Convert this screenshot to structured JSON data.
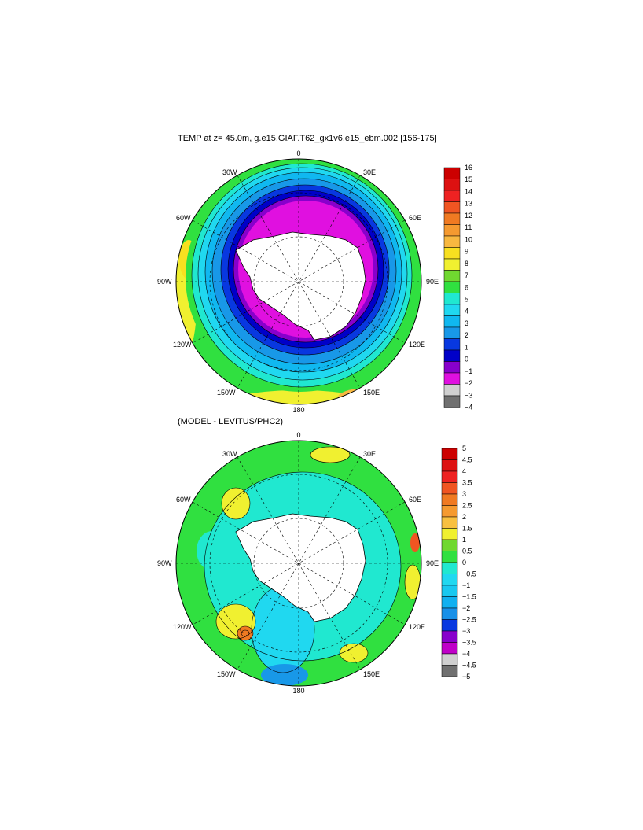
{
  "panels": [
    {
      "title": "TEMP at z=  45.0m, g.e15.GIAF.T62_gx1v6.e15_ebm.002 [156-175]",
      "lon_labels": {
        "top": "0",
        "bottom": "180",
        "left": "90W",
        "right": "90E",
        "nw": "30W",
        "wnw": "60W",
        "wsw": "120W",
        "sw": "150W",
        "ne": "30E",
        "ene": "60E",
        "ese": "120E",
        "se": "150E"
      },
      "colorbar": {
        "labels": [
          "16",
          "15",
          "14",
          "13",
          "12",
          "11",
          "10",
          "9",
          "8",
          "7",
          "6",
          "5",
          "4",
          "3",
          "2",
          "1",
          "0",
          "−1",
          "−2",
          "−3",
          "−4"
        ],
        "colors": [
          "#cc0000",
          "#dd1111",
          "#ee2222",
          "#f05522",
          "#f07a22",
          "#f59a30",
          "#f8b840",
          "#f8e020",
          "#f0f030",
          "#70d830",
          "#30e040",
          "#20e8d0",
          "#20d8f0",
          "#10b8f0",
          "#1898e8",
          "#0838e0",
          "#0000c8",
          "#8800cc",
          "#e010e0",
          "#d0d0d0",
          "#707070"
        ]
      }
    },
    {
      "title": "(MODEL - LEVITUS/PHC2)",
      "lon_labels": {
        "top": "0",
        "bottom": "180",
        "left": "90W",
        "right": "90E",
        "nw": "30W",
        "wnw": "60W",
        "wsw": "120W",
        "sw": "150W",
        "ne": "30E",
        "ene": "60E",
        "ese": "120E",
        "se": "150E"
      },
      "colorbar": {
        "labels": [
          "5",
          "4.5",
          "4",
          "3.5",
          "3",
          "2.5",
          "2",
          "1.5",
          "1",
          "0.5",
          "0",
          "−0.5",
          "−1",
          "−1.5",
          "−2",
          "−2.5",
          "−3",
          "−3.5",
          "−4",
          "−4.5",
          "−5"
        ],
        "colors": [
          "#cc0000",
          "#dd1111",
          "#ee2222",
          "#f05522",
          "#f07a22",
          "#f59a30",
          "#f8c040",
          "#f0f030",
          "#70d830",
          "#30e040",
          "#20e8d0",
          "#20d8f0",
          "#18c8f0",
          "#10b0f0",
          "#1890e8",
          "#0838e0",
          "#8800cc",
          "#c000c8",
          "#d0d0d0",
          "#707070"
        ]
      }
    }
  ]
}
